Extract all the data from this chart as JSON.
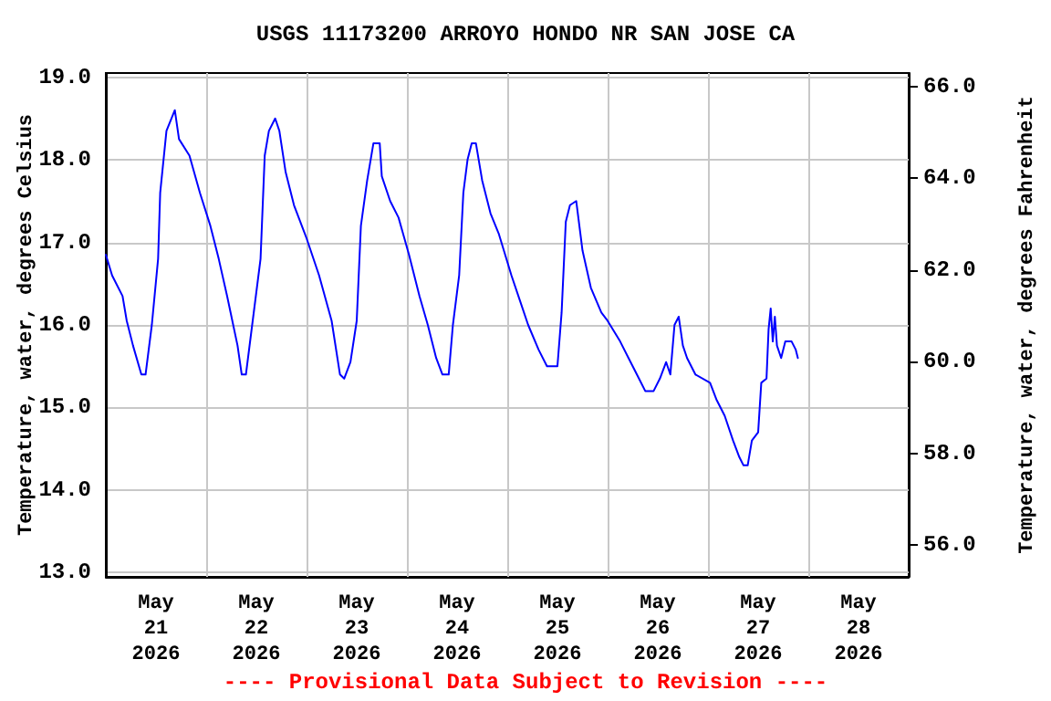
{
  "chart_data": {
    "type": "line",
    "title": "USGS 11173200 ARROYO HONDO NR SAN JOSE CA",
    "ylabel": "Temperature, water, degrees Celsius",
    "y2label": "Temperature, water, degrees Fahrenheit",
    "annotations": [
      "---- Provisional Data Subject to Revision ----"
    ],
    "xlim": [
      "2026-05-21T00:00",
      "2026-05-29T00:00"
    ],
    "xticks": [
      {
        "value": "2026-05-21T00:00",
        "label": null
      },
      {
        "value": "2026-05-21T12:00",
        "label": "May\n21\n2026"
      },
      {
        "value": "2026-05-22T00:00",
        "label": null
      },
      {
        "value": "2026-05-22T12:00",
        "label": "May\n22\n2026"
      },
      {
        "value": "2026-05-23T00:00",
        "label": null
      },
      {
        "value": "2026-05-23T12:00",
        "label": "May\n23\n2026"
      },
      {
        "value": "2026-05-24T00:00",
        "label": null
      },
      {
        "value": "2026-05-24T12:00",
        "label": "May\n24\n2026"
      },
      {
        "value": "2026-05-25T00:00",
        "label": null
      },
      {
        "value": "2026-05-25T12:00",
        "label": "May\n25\n2026"
      },
      {
        "value": "2026-05-26T00:00",
        "label": null
      },
      {
        "value": "2026-05-26T12:00",
        "label": "May\n26\n2026"
      },
      {
        "value": "2026-05-27T00:00",
        "label": null
      },
      {
        "value": "2026-05-27T12:00",
        "label": "May\n27\n2026"
      },
      {
        "value": "2026-05-28T00:00",
        "label": null
      },
      {
        "value": "2026-05-28T12:00",
        "label": "May\n28\n2026"
      },
      {
        "value": "2026-05-29T00:00",
        "label": null
      }
    ],
    "ylim": [
      12.95,
      19.05
    ],
    "yticks": [
      {
        "value": 13,
        "label": "13.0"
      },
      {
        "value": 14,
        "label": "14.0"
      },
      {
        "value": 15,
        "label": "15.0"
      },
      {
        "value": 16,
        "label": "16.0"
      },
      {
        "value": 17,
        "label": "17.0"
      },
      {
        "value": 18,
        "label": "18.0"
      },
      {
        "value": 19,
        "label": "19.0"
      }
    ],
    "y2lim": [
      55.31,
      66.29
    ],
    "y2ticks": [
      {
        "value": 56,
        "label": "56.0"
      },
      {
        "value": 58,
        "label": "58.0"
      },
      {
        "value": 60,
        "label": "60.0"
      },
      {
        "value": 62,
        "label": "62.0"
      },
      {
        "value": 64,
        "label": "64.0"
      },
      {
        "value": 66,
        "label": "66.0"
      }
    ],
    "grid": true,
    "marker": "none",
    "line_style": "solid",
    "series": [
      {
        "color": "#0000ff",
        "x": [
          "2026-05-21T00:00",
          "2026-05-21T01:30",
          "2026-05-21T04:00",
          "2026-05-21T05:00",
          "2026-05-21T06:30",
          "2026-05-21T08:30",
          "2026-05-21T09:30",
          "2026-05-21T11:00",
          "2026-05-21T12:30",
          "2026-05-21T13:00",
          "2026-05-21T14:30",
          "2026-05-21T16:30",
          "2026-05-21T17:30",
          "2026-05-21T20:00",
          "2026-05-21T22:30",
          "2026-05-22T01:00",
          "2026-05-22T03:00",
          "2026-05-22T05:00",
          "2026-05-22T07:30",
          "2026-05-22T08:30",
          "2026-05-22T09:30",
          "2026-05-22T11:00",
          "2026-05-22T13:00",
          "2026-05-22T14:00",
          "2026-05-22T15:00",
          "2026-05-22T16:30",
          "2026-05-22T17:30",
          "2026-05-22T19:00",
          "2026-05-22T21:00",
          "2026-05-23T00:00",
          "2026-05-23T03:00",
          "2026-05-23T06:00",
          "2026-05-23T08:00",
          "2026-05-23T09:00",
          "2026-05-23T10:30",
          "2026-05-23T12:00",
          "2026-05-23T13:00",
          "2026-05-23T14:30",
          "2026-05-23T16:00",
          "2026-05-23T17:30",
          "2026-05-23T18:00",
          "2026-05-23T20:00",
          "2026-05-23T22:00",
          "2026-05-24T00:30",
          "2026-05-24T03:00",
          "2026-05-24T05:00",
          "2026-05-24T07:00",
          "2026-05-24T08:30",
          "2026-05-24T10:00",
          "2026-05-24T11:00",
          "2026-05-24T12:30",
          "2026-05-24T13:30",
          "2026-05-24T14:30",
          "2026-05-24T15:30",
          "2026-05-24T16:30",
          "2026-05-24T18:00",
          "2026-05-24T20:00",
          "2026-05-24T22:00",
          "2026-05-25T01:00",
          "2026-05-25T03:00",
          "2026-05-25T05:00",
          "2026-05-25T07:30",
          "2026-05-25T09:30",
          "2026-05-25T12:00",
          "2026-05-25T13:00",
          "2026-05-25T14:00",
          "2026-05-25T15:00",
          "2026-05-25T16:30",
          "2026-05-25T18:00",
          "2026-05-25T20:00",
          "2026-05-25T22:30",
          "2026-05-26T00:00",
          "2026-05-26T03:00",
          "2026-05-26T05:00",
          "2026-05-26T07:30",
          "2026-05-26T09:00",
          "2026-05-26T11:00",
          "2026-05-26T12:30",
          "2026-05-26T14:00",
          "2026-05-26T15:00",
          "2026-05-26T16:00",
          "2026-05-26T17:00",
          "2026-05-26T18:00",
          "2026-05-26T19:00",
          "2026-05-26T21:00",
          "2026-05-27T00:30",
          "2026-05-27T02:00",
          "2026-05-27T04:00",
          "2026-05-27T06:00",
          "2026-05-27T07:30",
          "2026-05-27T08:30",
          "2026-05-27T09:30",
          "2026-05-27T10:30",
          "2026-05-27T12:00",
          "2026-05-27T12:45",
          "2026-05-27T14:00",
          "2026-05-27T14:30",
          "2026-05-27T15:00",
          "2026-05-27T15:30",
          "2026-05-27T16:00",
          "2026-05-27T16:30",
          "2026-05-27T17:30",
          "2026-05-27T18:30",
          "2026-05-27T20:00",
          "2026-05-27T21:00",
          "2026-05-27T21:30"
        ],
        "values": [
          16.85,
          16.6,
          16.35,
          16.05,
          15.75,
          15.4,
          15.4,
          16.0,
          16.8,
          17.6,
          18.35,
          18.6,
          18.25,
          18.05,
          17.6,
          17.2,
          16.8,
          16.35,
          15.75,
          15.4,
          15.4,
          16.0,
          16.8,
          18.05,
          18.35,
          18.5,
          18.35,
          17.85,
          17.45,
          17.05,
          16.6,
          16.05,
          15.4,
          15.35,
          15.55,
          16.05,
          17.2,
          17.75,
          18.2,
          18.2,
          17.8,
          17.5,
          17.3,
          16.85,
          16.35,
          16.0,
          15.6,
          15.4,
          15.4,
          16.0,
          16.6,
          17.6,
          18.0,
          18.2,
          18.2,
          17.75,
          17.35,
          17.1,
          16.6,
          16.3,
          16.0,
          15.7,
          15.5,
          15.5,
          16.15,
          17.25,
          17.45,
          17.5,
          16.9,
          16.45,
          16.15,
          16.05,
          15.8,
          15.6,
          15.35,
          15.2,
          15.2,
          15.35,
          15.55,
          15.4,
          16.0,
          16.1,
          15.75,
          15.6,
          15.4,
          15.3,
          15.1,
          14.9,
          14.6,
          14.4,
          14.3,
          14.3,
          14.6,
          14.7,
          15.3,
          15.35,
          15.95,
          16.2,
          15.8,
          16.1,
          15.75,
          15.6,
          15.8,
          15.8,
          15.7,
          15.6
        ]
      }
    ]
  }
}
